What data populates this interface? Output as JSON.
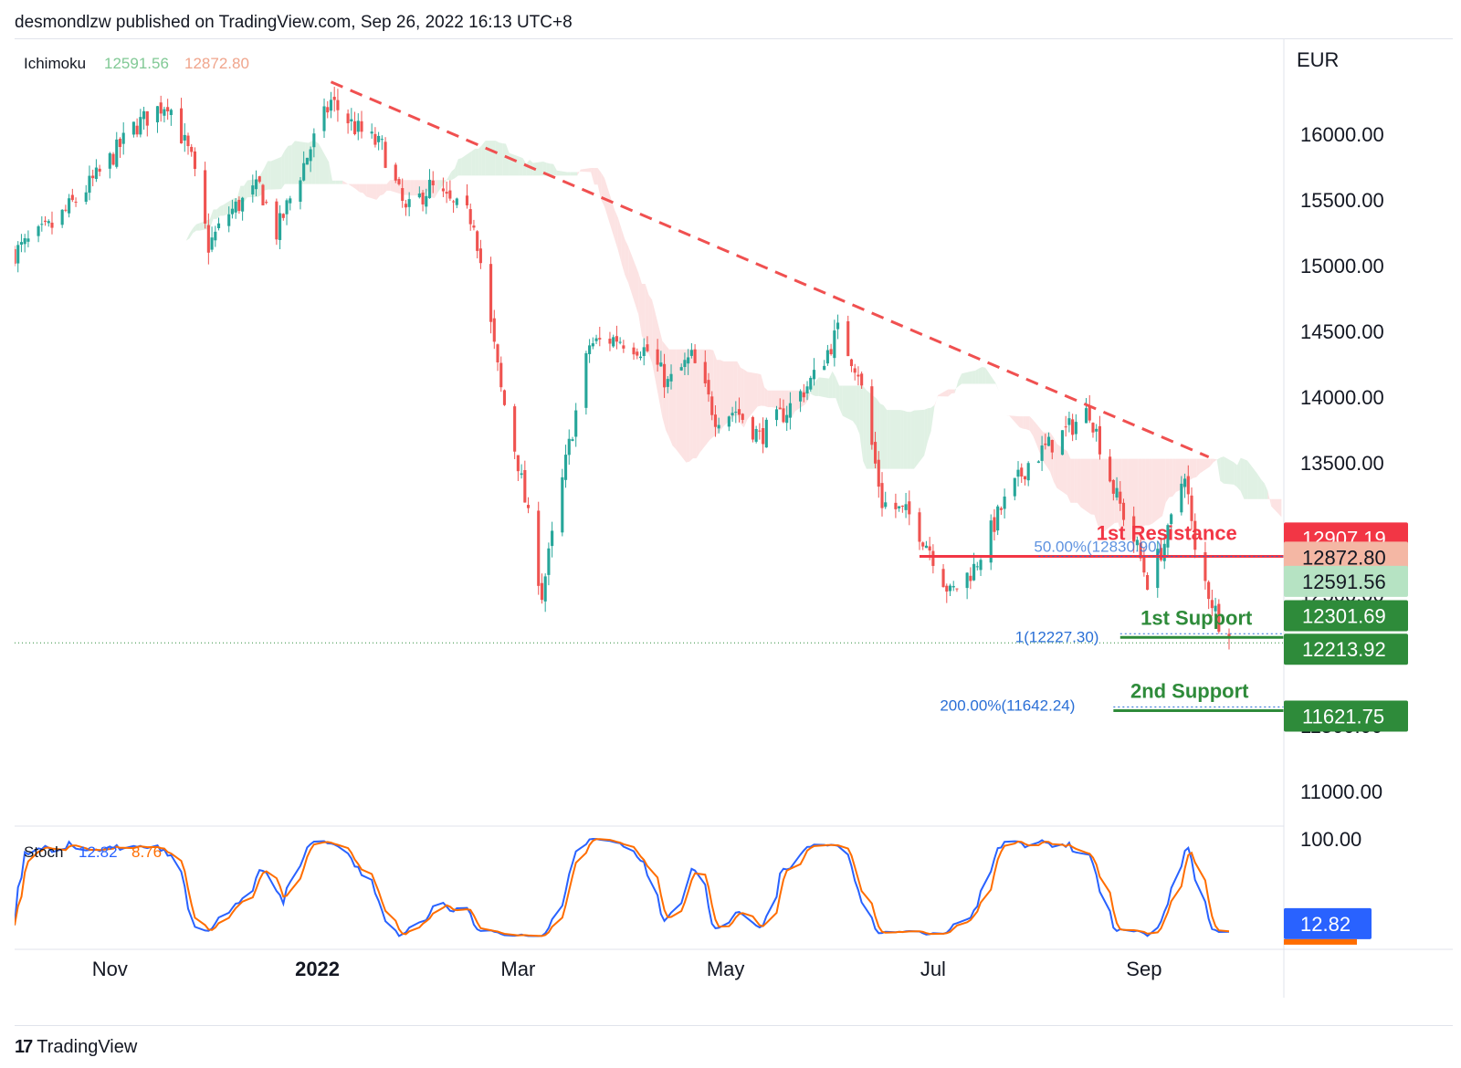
{
  "header": {
    "publisher_line": "desmondlzw published on TradingView.com, Sep 26, 2022 16:13 UTC+8"
  },
  "footer": {
    "brand": "TradingView",
    "logo_glyph": "17"
  },
  "colors": {
    "bull": "#26a69a",
    "bear": "#ef5350",
    "trend": "#f05050",
    "cloud_bull": "#d6ecdb",
    "cloud_bear": "#fbdada",
    "stoch_k": "#2962ff",
    "stoch_d": "#ff6d00",
    "resistance": "#f23645",
    "support": "#2e8b3a",
    "fib": "#2a6fd6"
  },
  "chart_data": {
    "type": "candlestick",
    "currency": "EUR",
    "ylim": [
      10700,
      16700
    ],
    "y_ticks": [
      "16000.00",
      "15500.00",
      "15000.00",
      "14500.00",
      "14000.00",
      "13500.00",
      "12500.00",
      "11500.00",
      "11000.00"
    ],
    "y_tick_values": [
      16000,
      15500,
      15000,
      14500,
      14000,
      13500,
      12500,
      11500,
      11000
    ],
    "x_labels": [
      {
        "label": "Nov",
        "date": "2021-11-01",
        "bold": false
      },
      {
        "label": "2022",
        "date": "2022-01-01",
        "bold": true
      },
      {
        "label": "Mar",
        "date": "2022-03-01",
        "bold": false
      },
      {
        "label": "May",
        "date": "2022-05-01",
        "bold": false
      },
      {
        "label": "Jul",
        "date": "2022-07-01",
        "bold": false
      },
      {
        "label": "Sep",
        "date": "2022-09-01",
        "bold": false
      }
    ],
    "x_start": "2021-10-04",
    "x_end": "2022-09-26",
    "close_anchors": [
      [
        "2021-10-04",
        15100
      ],
      [
        "2021-10-15",
        15300
      ],
      [
        "2021-10-29",
        15700
      ],
      [
        "2021-11-08",
        16050
      ],
      [
        "2021-11-18",
        16250
      ],
      [
        "2021-11-25",
        15800
      ],
      [
        "2021-11-30",
        15150
      ],
      [
        "2021-12-06",
        15400
      ],
      [
        "2021-12-15",
        15600
      ],
      [
        "2021-12-20",
        15250
      ],
      [
        "2021-12-30",
        15900
      ],
      [
        "2022-01-05",
        16250
      ],
      [
        "2022-01-12",
        16050
      ],
      [
        "2022-01-20",
        15900
      ],
      [
        "2022-01-27",
        15400
      ],
      [
        "2022-02-03",
        15600
      ],
      [
        "2022-02-10",
        15450
      ],
      [
        "2022-02-16",
        15350
      ],
      [
        "2022-02-24",
        14050
      ],
      [
        "2022-03-01",
        13500
      ],
      [
        "2022-03-08",
        12500
      ],
      [
        "2022-03-15",
        13500
      ],
      [
        "2022-03-22",
        14400
      ],
      [
        "2022-03-30",
        14450
      ],
      [
        "2022-04-08",
        14350
      ],
      [
        "2022-04-14",
        14100
      ],
      [
        "2022-04-21",
        14300
      ],
      [
        "2022-04-28",
        13850
      ],
      [
        "2022-05-04",
        13900
      ],
      [
        "2022-05-11",
        13700
      ],
      [
        "2022-05-19",
        13900
      ],
      [
        "2022-05-27",
        14150
      ],
      [
        "2022-06-03",
        14500
      ],
      [
        "2022-06-09",
        14200
      ],
      [
        "2022-06-16",
        13200
      ],
      [
        "2022-06-24",
        13100
      ],
      [
        "2022-06-30",
        12850
      ],
      [
        "2022-07-06",
        12500
      ],
      [
        "2022-07-13",
        12700
      ],
      [
        "2022-07-21",
        13150
      ],
      [
        "2022-07-29",
        13500
      ],
      [
        "2022-08-05",
        13650
      ],
      [
        "2022-08-16",
        13900
      ],
      [
        "2022-08-23",
        13300
      ],
      [
        "2022-08-30",
        12850
      ],
      [
        "2022-09-02",
        12600
      ],
      [
        "2022-09-08",
        12950
      ],
      [
        "2022-09-13",
        13450
      ],
      [
        "2022-09-16",
        12800
      ],
      [
        "2022-09-23",
        12300
      ],
      [
        "2022-09-26",
        12250
      ]
    ],
    "trend_line": {
      "from": [
        "2022-01-05",
        16300
      ],
      "to": [
        "2022-09-20",
        13600
      ]
    },
    "resistance_line": {
      "price": 12830,
      "from": "2022-06-27",
      "to": "2022-09-26"
    },
    "support1_price": 12227.3,
    "support2_price": 11642.24,
    "dotted_level": 12200,
    "fib_labels": {
      "r50": "50.00%(12830.90)",
      "s1": "1(12227.30)",
      "s200": "200.00%(11642.24)"
    },
    "annotations": {
      "resistance": "1st Resistance",
      "support1": "1st Support",
      "support2": "2nd Support"
    },
    "price_badges": [
      {
        "value": "12907.19",
        "price": 12907.19,
        "color": "#f23645",
        "text_color": "#ffffff"
      },
      {
        "value": "12872.80",
        "price": 12872.8,
        "color": "#f4b7a4",
        "text_color": "#131722"
      },
      {
        "value": "12591.56",
        "price": 12591.56,
        "color": "#b6e3c3",
        "text_color": "#131722"
      },
      {
        "value": "12301.69",
        "price": 12301.69,
        "color": "#2e8b3a",
        "text_color": "#ffffff"
      },
      {
        "value": "12213.92",
        "price": 12213.92,
        "color": "#2e8b3a",
        "text_color": "#ffffff"
      },
      {
        "value": "11621.75",
        "price": 11621.75,
        "color": "#2e8b3a",
        "text_color": "#ffffff"
      }
    ],
    "ichimoku": {
      "label": "Ichimoku",
      "value1": "12591.56",
      "value2": "12872.80"
    },
    "stoch": {
      "label": "Stoch",
      "k": "12.82",
      "d": "8.76",
      "ylim": [
        0,
        100
      ],
      "top_tick": "100.00",
      "badge": "12.82"
    }
  }
}
